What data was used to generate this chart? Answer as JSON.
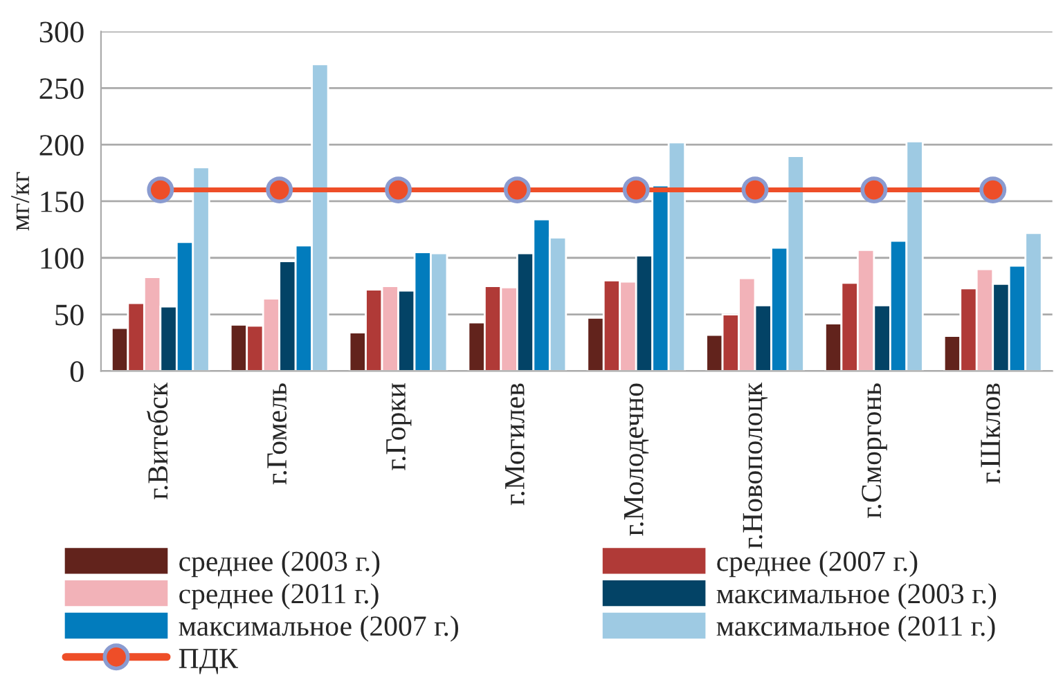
{
  "chart_data": {
    "type": "bar",
    "ylabel": "мг/кг",
    "categories": [
      "г.Витебск",
      "г.Гомель",
      "г.Горки",
      "г.Могилев",
      "г.Молодечно",
      "г.Новополоцк",
      "г.Сморгонь",
      "г.Шклов"
    ],
    "series": [
      {
        "name": "среднее (2003 г.)",
        "color": "#62231c",
        "values": [
          38,
          41,
          34,
          43,
          47,
          32,
          42,
          31
        ]
      },
      {
        "name": "среднее (2007 г.)",
        "color": "#b03a37",
        "values": [
          60,
          40,
          72,
          75,
          80,
          50,
          78,
          73
        ]
      },
      {
        "name": "среднее (2011 г.)",
        "color": "#f2b2b8",
        "values": [
          83,
          64,
          75,
          74,
          79,
          82,
          107,
          90
        ]
      },
      {
        "name": "максимальное (2003 г.)",
        "color": "#034366",
        "values": [
          57,
          97,
          71,
          104,
          102,
          58,
          58,
          77
        ]
      },
      {
        "name": "максимальное (2007 г.)",
        "color": "#027cbd",
        "values": [
          114,
          111,
          105,
          134,
          164,
          109,
          115,
          93
        ]
      },
      {
        "name": "максимальное (2011 г.)",
        "color": "#9ecae3",
        "values": [
          180,
          271,
          104,
          118,
          202,
          190,
          203,
          122
        ]
      },
      {
        "name": "ПДК",
        "type": "line",
        "color": "#ee4e28",
        "marker": "circle",
        "line_style": "solid",
        "values": [
          160,
          160,
          160,
          160,
          160,
          160,
          160,
          160
        ]
      }
    ],
    "ylim": [
      0,
      300
    ],
    "yticks": [
      0,
      50,
      100,
      150,
      200,
      250,
      300
    ],
    "grid": "y",
    "legend": "bottom"
  }
}
